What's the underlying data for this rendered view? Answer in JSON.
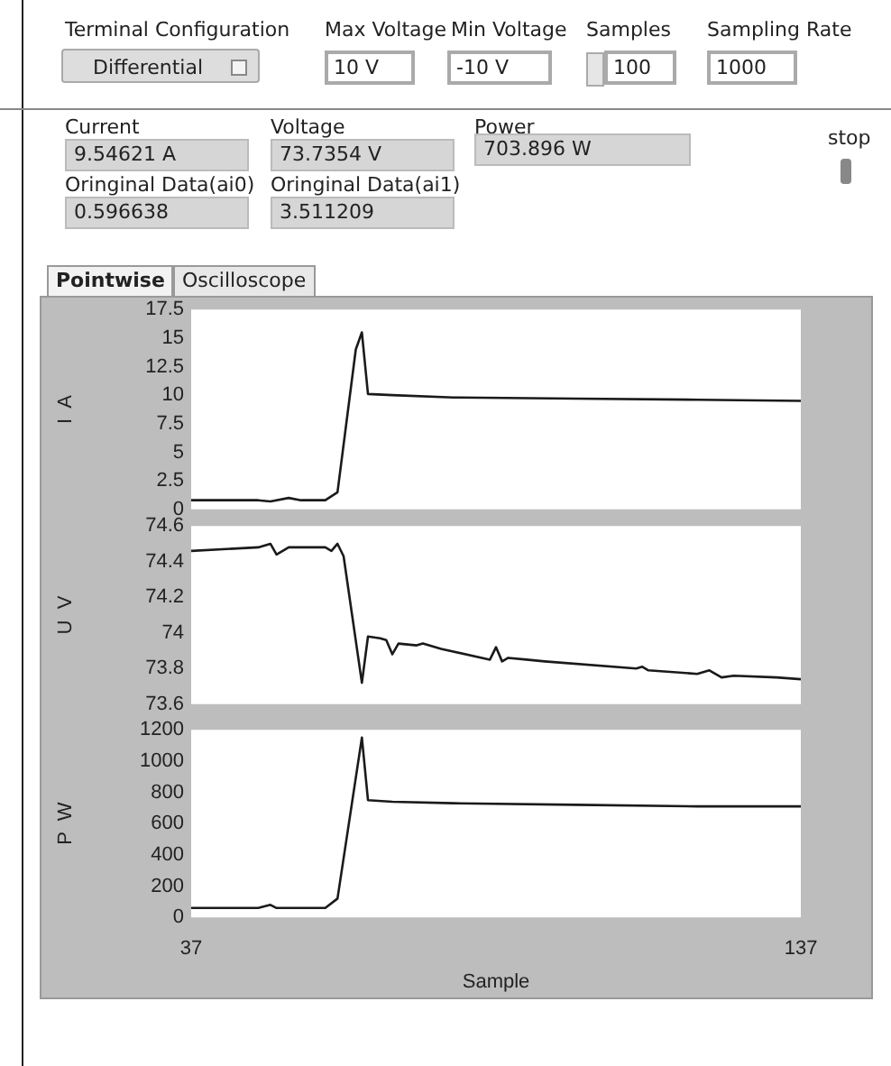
{
  "chart_data": [
    {
      "type": "other",
      "annotations": [
        "Terminal Configuration",
        "Differential",
        "Max Voltage",
        "10  V",
        "Min Voltage",
        "-10  V",
        "Samples",
        "100",
        "Sampling Rate",
        "1000",
        "Current",
        "9.54621  A",
        "Voltage",
        "73.7354  V",
        "Power",
        "703.896  W",
        "Oringinal Data(ai0)",
        "0.596638",
        "Oringinal Data(ai1)",
        "3.511209",
        "stop",
        "Pointwise",
        "Oscilloscope"
      ]
    },
    {
      "type": "line",
      "ylabel": "I  A",
      "color": "#1a1a1a",
      "marker": "none",
      "line_style": "solid",
      "grid": false,
      "tick_labels": "y",
      "x": [
        37,
        48,
        50,
        53,
        55,
        59,
        61,
        64,
        65,
        66,
        70,
        80,
        100,
        120,
        137
      ],
      "values": [
        0.8,
        0.8,
        0.7,
        1.0,
        0.8,
        0.8,
        1.5,
        14,
        15.5,
        10.1,
        10,
        9.8,
        9.7,
        9.6,
        9.5
      ],
      "xlim": [
        37,
        137
      ],
      "ylim": [
        0,
        17.5
      ],
      "yticks": [
        0,
        2.5,
        5,
        7.5,
        10,
        12.5,
        15,
        17.5
      ]
    },
    {
      "type": "line",
      "ylabel": "U  V",
      "color": "#1a1a1a",
      "marker": "none",
      "line_style": "solid",
      "grid": false,
      "tick_labels": "y",
      "x": [
        37,
        48,
        50,
        51,
        53,
        59,
        60,
        61,
        62,
        65,
        66,
        68,
        69,
        70,
        71,
        74,
        75,
        78,
        86,
        87,
        88,
        89,
        92,
        95,
        110,
        111,
        112,
        120,
        122,
        124,
        126,
        133,
        137
      ],
      "values": [
        74.46,
        74.48,
        74.5,
        74.44,
        74.48,
        74.48,
        74.46,
        74.5,
        74.43,
        73.72,
        73.98,
        73.97,
        73.96,
        73.88,
        73.94,
        73.93,
        73.94,
        73.91,
        73.85,
        73.92,
        73.84,
        73.86,
        73.85,
        73.84,
        73.8,
        73.81,
        73.79,
        73.77,
        73.79,
        73.75,
        73.76,
        73.75,
        73.74
      ],
      "xlim": [
        37,
        137
      ],
      "ylim": [
        73.6,
        74.6
      ],
      "yticks": [
        73.6,
        73.8,
        74,
        74.2,
        74.4,
        74.6
      ]
    },
    {
      "type": "line",
      "ylabel": "P  W",
      "xlabel": "Sample",
      "color": "#1a1a1a",
      "marker": "none",
      "line_style": "solid",
      "grid": false,
      "x": [
        37,
        48,
        50,
        51,
        53,
        59,
        61,
        65,
        66,
        70,
        80,
        100,
        120,
        137
      ],
      "values": [
        60,
        60,
        80,
        60,
        60,
        60,
        120,
        1150,
        750,
        740,
        730,
        720,
        710,
        710
      ],
      "xlim": [
        37,
        137
      ],
      "xticks": [
        37,
        137
      ],
      "ylim": [
        0,
        1200
      ],
      "yticks": [
        0,
        200,
        400,
        600,
        800,
        1000,
        1200
      ]
    }
  ]
}
